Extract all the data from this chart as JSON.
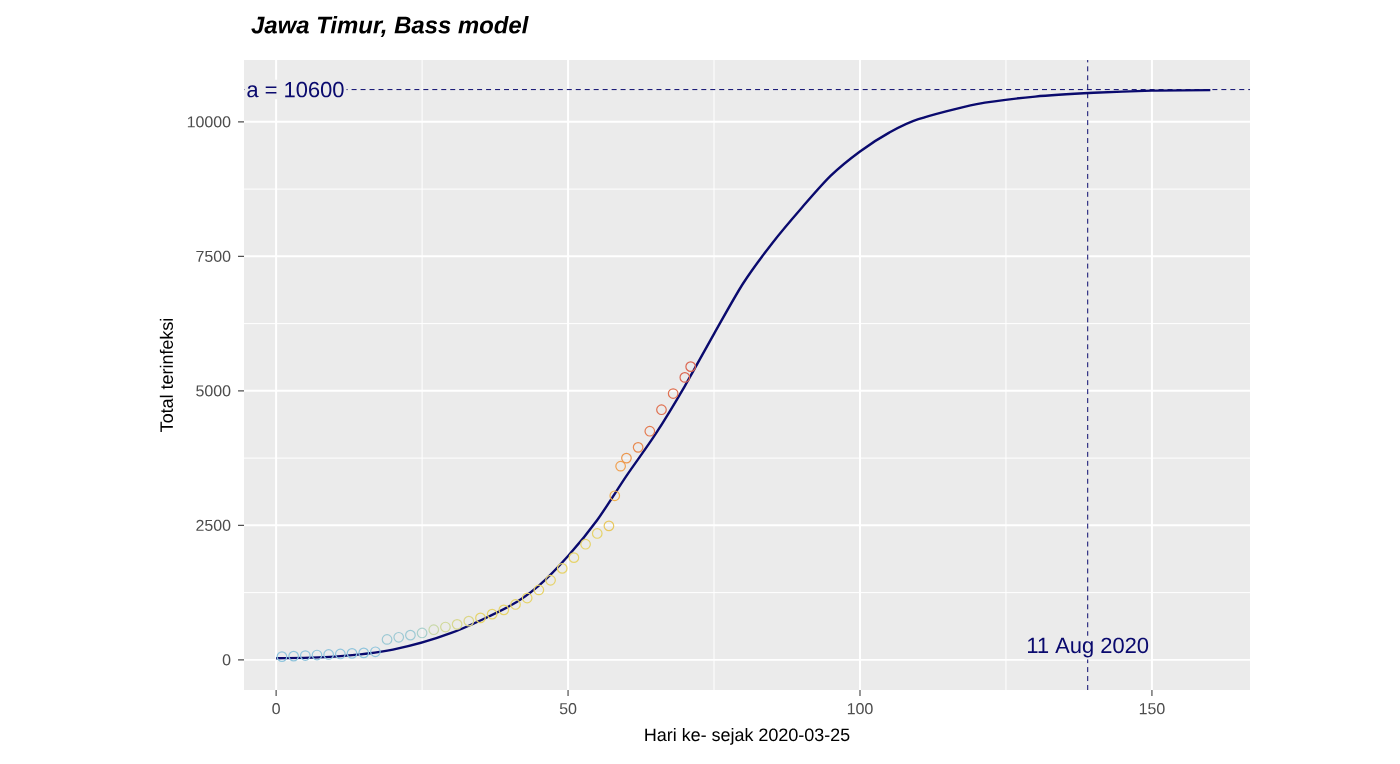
{
  "chart_data": {
    "type": "line",
    "title": "Jawa Timur, Bass model",
    "xlabel": "Hari ke- sejak  2020-03-25",
    "ylabel": "Total terinfeksi",
    "xlim": [
      -5.5,
      166.8
    ],
    "ylim": [
      -560,
      11150
    ],
    "xticks": [
      0,
      50,
      100,
      150
    ],
    "yticks": [
      0,
      2500,
      5000,
      7500,
      10000
    ],
    "grid": true,
    "series": [
      {
        "type": "scatter",
        "marker": "circle",
        "x": [
          1,
          3,
          5,
          7,
          9,
          11,
          13,
          15,
          17,
          19,
          21,
          23,
          25,
          27,
          29,
          31,
          33,
          35,
          37,
          39,
          41,
          43,
          45,
          47,
          49,
          51,
          53,
          55,
          57,
          58,
          59,
          60,
          62,
          64,
          66,
          68,
          70,
          71
        ],
        "values": [
          60,
          70,
          80,
          90,
          100,
          110,
          120,
          130,
          150,
          380,
          420,
          460,
          500,
          560,
          610,
          660,
          720,
          780,
          850,
          930,
          1030,
          1150,
          1300,
          1480,
          1700,
          1900,
          2150,
          2350,
          2490,
          3050,
          3600,
          3750,
          3950,
          4250,
          4650,
          4950,
          5250,
          5450
        ],
        "colors": [
          "#8fc4dc",
          "#8fc4dc",
          "#8fc4dc",
          "#8fc4dc",
          "#8fc4dc",
          "#8fc4dc",
          "#8fc4dc",
          "#8fc4dc",
          "#8fc4dc",
          "#9cc9d4",
          "#9cc9d4",
          "#9cc9d4",
          "#a8cfcc",
          "#c8d8a8",
          "#d0d898",
          "#d8d890",
          "#dcd688",
          "#e6d36a",
          "#e6d36a",
          "#e6d36a",
          "#e6d36a",
          "#e6d36a",
          "#e6d36a",
          "#e6d36a",
          "#e6d36a",
          "#e6d36a",
          "#e6d36a",
          "#e6d36a",
          "#e8c860",
          "#f0b050",
          "#f0a050",
          "#ec9850",
          "#e88a50",
          "#e47a50",
          "#e07050",
          "#e07050",
          "#dc6650",
          "#dc6650"
        ]
      },
      {
        "marker": "none",
        "line_style": "solid",
        "color": "#0a0a6e",
        "x": [
          0,
          10,
          20,
          30,
          40,
          45,
          50,
          55,
          60,
          65,
          70,
          75,
          80,
          85,
          90,
          95,
          100,
          105,
          110,
          120,
          130,
          140,
          150,
          160
        ],
        "values": [
          30,
          60,
          190,
          500,
          1000,
          1380,
          1930,
          2600,
          3420,
          4200,
          5090,
          6060,
          7000,
          7750,
          8400,
          9000,
          9450,
          9800,
          10050,
          10330,
          10470,
          10540,
          10580,
          10590
        ]
      }
    ],
    "ref_lines": [
      {
        "axis": "y",
        "value": 10600,
        "label": "a =  10600",
        "color": "#0a0a6e",
        "line_style": "dashed"
      },
      {
        "axis": "x",
        "value": 139,
        "label": "11 Aug 2020",
        "color": "#0a0a6e",
        "line_style": "dashed"
      }
    ]
  }
}
